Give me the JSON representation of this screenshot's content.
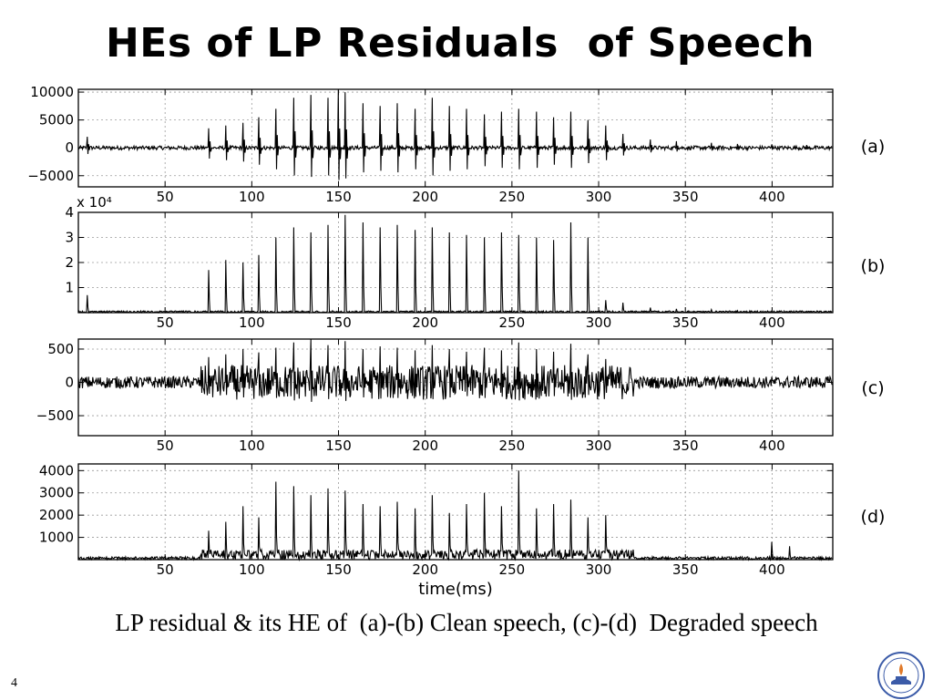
{
  "slide": {
    "title": "HEs of LP Residuals  of Speech",
    "caption": "LP residual & its HE of  (a)-(b) Clean speech, (c)-(d)  Degraded speech",
    "number": "4"
  },
  "colors": {
    "signal": "#000000",
    "grid": "#9a9a9a",
    "axis": "#000000",
    "logo": "#3b5ba8"
  },
  "icons": {
    "logo": "institute-seal-icon"
  },
  "chart_data": [
    {
      "type": "line",
      "panel": "(a)",
      "xlim": [
        0,
        435
      ],
      "ylim": [
        -7000,
        10500
      ],
      "yticks": [
        10000,
        5000,
        0,
        -5000
      ],
      "ytick_labels": [
        "10000",
        "5000",
        "0",
        "−5000"
      ],
      "xticks": [
        50,
        100,
        150,
        200,
        250,
        300,
        350,
        400
      ],
      "exponent_label": "",
      "series": [
        {
          "envelope": false,
          "baseline": 0,
          "noise": 350,
          "ringing": 0.55,
          "x": [
            5,
            75,
            85,
            95,
            104,
            114,
            124,
            134,
            144,
            150,
            154,
            164,
            174,
            184,
            194,
            204,
            214,
            224,
            234,
            244,
            254,
            264,
            274,
            284,
            294,
            304,
            314,
            330,
            345,
            365,
            380,
            400,
            420
          ],
          "y": [
            2000,
            3500,
            4000,
            4500,
            5500,
            7000,
            9000,
            9500,
            9000,
            10500,
            10000,
            8000,
            7500,
            8000,
            7000,
            9000,
            7500,
            7000,
            6000,
            6500,
            7000,
            6500,
            5500,
            6500,
            5000,
            4000,
            2500,
            1500,
            1200,
            900,
            700,
            600,
            500
          ]
        }
      ]
    },
    {
      "type": "line",
      "panel": "(b)",
      "xlim": [
        0,
        435
      ],
      "ylim": [
        0,
        40000
      ],
      "yticks": [
        40000,
        30000,
        20000,
        10000
      ],
      "ytick_labels": [
        "4",
        "3",
        "2",
        "1"
      ],
      "xticks": [
        50,
        100,
        150,
        200,
        250,
        300,
        350,
        400
      ],
      "exponent_label": "x 10⁴",
      "series": [
        {
          "envelope": true,
          "baseline": 0,
          "noise": 700,
          "x": [
            5,
            75,
            85,
            95,
            104,
            114,
            124,
            134,
            144,
            154,
            164,
            174,
            184,
            194,
            204,
            214,
            224,
            234,
            244,
            254,
            264,
            274,
            284,
            294,
            304,
            314,
            330,
            345,
            365,
            380,
            400,
            420
          ],
          "y": [
            7000,
            17000,
            21000,
            20000,
            23000,
            30000,
            34000,
            32000,
            35000,
            39000,
            36000,
            34000,
            35000,
            33000,
            34000,
            32000,
            31000,
            30000,
            32000,
            31000,
            30000,
            29000,
            36000,
            30000,
            5000,
            4000,
            2000,
            1500,
            1200,
            800,
            700,
            600
          ]
        }
      ]
    },
    {
      "type": "line",
      "panel": "(c)",
      "xlim": [
        0,
        435
      ],
      "ylim": [
        -800,
        650
      ],
      "yticks": [
        500,
        0,
        -500
      ],
      "ytick_labels": [
        "500",
        "0",
        "−500"
      ],
      "xticks": [
        50,
        100,
        150,
        200,
        250,
        300,
        350,
        400
      ],
      "exponent_label": "",
      "series": [
        {
          "envelope": false,
          "baseline": 0,
          "noise": 90,
          "dense_noise": 260,
          "dense_range": [
            70,
            320
          ],
          "ringing": 0.45,
          "x": [
            75,
            85,
            95,
            104,
            114,
            124,
            134,
            144,
            154,
            164,
            174,
            184,
            194,
            204,
            214,
            224,
            234,
            244,
            254,
            264,
            274,
            284,
            294,
            304
          ],
          "y": [
            380,
            420,
            500,
            450,
            520,
            600,
            650,
            560,
            620,
            500,
            540,
            520,
            480,
            560,
            500,
            460,
            520,
            480,
            600,
            500,
            460,
            580,
            420,
            350
          ]
        }
      ]
    },
    {
      "type": "line",
      "panel": "(d)",
      "xlim": [
        0,
        435
      ],
      "ylim": [
        0,
        4300
      ],
      "yticks": [
        4000,
        3000,
        2000,
        1000
      ],
      "ytick_labels": [
        "4000",
        "3000",
        "2000",
        "1000"
      ],
      "xticks": [
        50,
        100,
        150,
        200,
        250,
        300,
        350,
        400
      ],
      "xlabel": "time(ms)",
      "exponent_label": "",
      "series": [
        {
          "envelope": true,
          "baseline": 0,
          "noise": 130,
          "dense_noise": 450,
          "dense_range": [
            70,
            320
          ],
          "x": [
            75,
            85,
            95,
            104,
            114,
            124,
            134,
            144,
            154,
            164,
            174,
            184,
            194,
            204,
            214,
            224,
            234,
            244,
            254,
            264,
            274,
            284,
            294,
            304,
            400,
            410
          ],
          "y": [
            1300,
            1700,
            2400,
            1900,
            3500,
            3300,
            2900,
            3200,
            3100,
            2500,
            2400,
            2600,
            2300,
            2900,
            2100,
            2500,
            3000,
            2400,
            4000,
            2300,
            2500,
            2700,
            1900,
            2000,
            800,
            600
          ]
        }
      ]
    }
  ],
  "panel_labels": [
    "(a)",
    "(b)",
    "(c)",
    "(d)"
  ],
  "x_tick_labels": [
    "50",
    "100",
    "150",
    "200",
    "250",
    "300",
    "350",
    "400"
  ]
}
